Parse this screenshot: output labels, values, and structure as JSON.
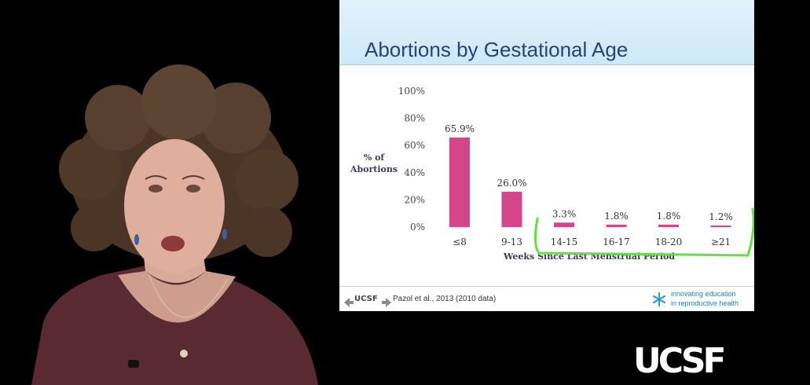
{
  "slide": {
    "title": "Abortions by Gestational Age",
    "citation": "Pazol et al., 2013 (2010 data)",
    "brand_line1": "innovating education",
    "brand_line2": "in reproductive health",
    "nav_logo_text": "UCSF"
  },
  "watermark": "UCSF",
  "colors": {
    "bar": "#d6448a",
    "highlight": "#5fe23f",
    "title": "#2c3f7a",
    "header_bg": "#d6ecf8",
    "brand": "#2a7fb6"
  },
  "chart_data": {
    "type": "bar",
    "ylabel_line1": "% of",
    "ylabel_line2": "Abortions",
    "xlabel": "Weeks Since Last Menstrual Period",
    "categories": [
      "≤8",
      "9-13",
      "14-15",
      "16-17",
      "18-20",
      "≥21"
    ],
    "values": [
      65.9,
      26.0,
      3.3,
      1.8,
      1.8,
      1.2
    ],
    "value_labels": [
      "65.9%",
      "26.0%",
      "3.3%",
      "1.8%",
      "1.8%",
      "1.2%"
    ],
    "yticks": [
      "0%",
      "20%",
      "40%",
      "60%",
      "80%",
      "100%"
    ],
    "ylim": [
      0,
      100
    ],
    "grid": false,
    "annotation": "hand-drawn highlight around 14-15 through ≥21"
  }
}
